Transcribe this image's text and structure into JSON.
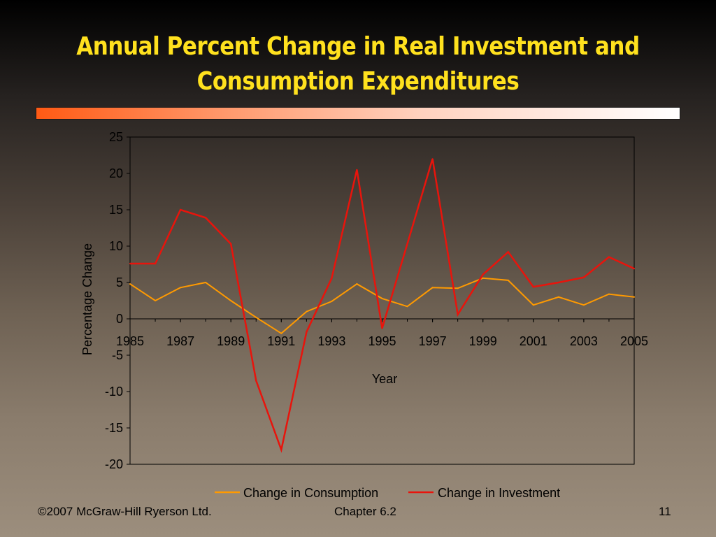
{
  "slide": {
    "title_line1": "Annual Percent Change in Real Investment and",
    "title_line2": "Consumption Expenditures",
    "footer_left": "©2007 McGraw-Hill Ryerson Ltd.",
    "footer_center": "Chapter 6.2",
    "footer_right": "11"
  },
  "colors": {
    "title": "#ffe11e",
    "consumption": "#ff9a00",
    "investment": "#e8140c"
  },
  "chart_data": {
    "type": "line",
    "title": "",
    "xlabel": "Year",
    "ylabel": "Percentage Change",
    "x": [
      1985,
      1986,
      1987,
      1988,
      1989,
      1990,
      1991,
      1992,
      1993,
      1994,
      1995,
      1996,
      1997,
      1998,
      1999,
      2000,
      2001,
      2002,
      2003,
      2004,
      2005
    ],
    "x_tick_labels": [
      "1985",
      "1987",
      "1989",
      "1991",
      "1993",
      "1995",
      "1997",
      "1999",
      "2001",
      "2003",
      "2005"
    ],
    "y_tick_labels": [
      "25",
      "20",
      "15",
      "10",
      "5",
      "0",
      "-5",
      "-10",
      "-15",
      "-20"
    ],
    "ylim": [
      -20,
      25
    ],
    "xlim": [
      1985,
      2005
    ],
    "grid": false,
    "legend_position": "bottom",
    "series": [
      {
        "name": "Change in Consumption",
        "values": [
          4.8,
          2.5,
          4.3,
          5.0,
          2.5,
          0.2,
          -2.0,
          1.0,
          2.4,
          4.8,
          2.8,
          1.7,
          4.3,
          4.2,
          5.6,
          5.3,
          1.9,
          3.0,
          1.9,
          3.4,
          3.0
        ]
      },
      {
        "name": "Change in Investment",
        "values": [
          7.6,
          7.6,
          15.0,
          13.9,
          10.3,
          -8.5,
          -18.0,
          -1.8,
          5.6,
          20.5,
          -1.3,
          10.3,
          22.0,
          0.6,
          6.1,
          9.2,
          4.4,
          5.0,
          5.7,
          8.5,
          6.9
        ]
      }
    ]
  }
}
